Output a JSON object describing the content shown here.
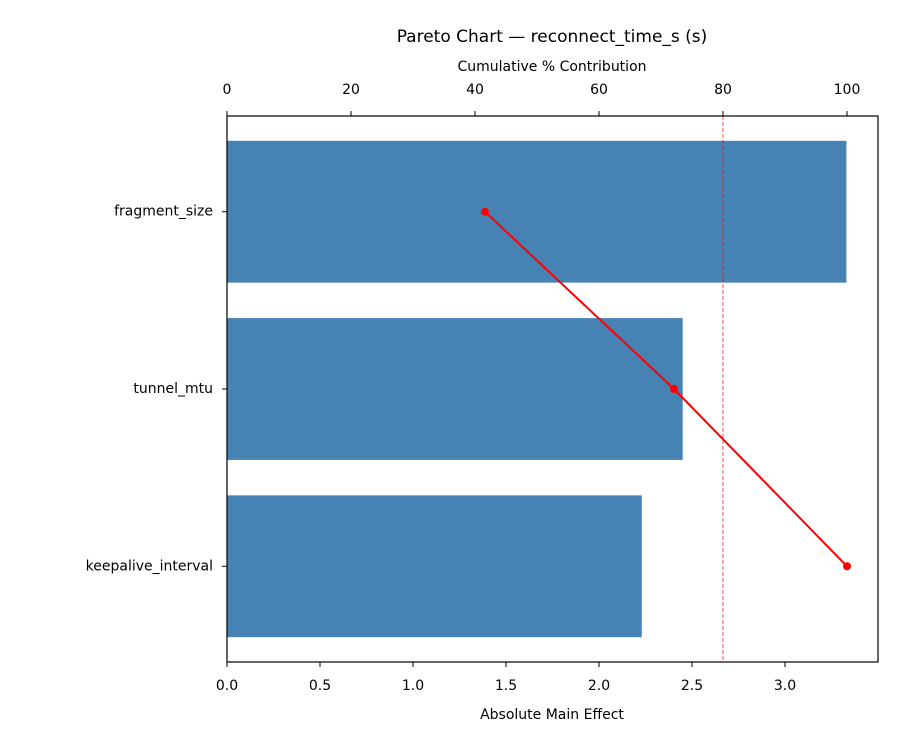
{
  "chart_data": {
    "type": "pareto",
    "title": "Pareto Chart — reconnect_time_s (s)",
    "xlabel": "Absolute Main Effect",
    "x2label": "Cumulative % Contribution",
    "categories": [
      "fragment_size",
      "tunnel_mtu",
      "keepalive_interval"
    ],
    "series": [
      {
        "name": "Absolute Main Effect",
        "color": "#4682b4",
        "values": [
          3.33,
          2.45,
          2.23
        ]
      },
      {
        "name": "Cumulative %",
        "color": "#ff0000",
        "axis": "x2",
        "values": [
          41.6,
          72.1,
          100
        ]
      }
    ],
    "threshold": 80,
    "xlim": [
      0,
      3.5
    ],
    "xticks": [
      {
        "value": 0,
        "label": "0.0"
      },
      {
        "value": 0.5,
        "label": "0.5"
      },
      {
        "value": 1,
        "label": "1.0"
      },
      {
        "value": 1.5,
        "label": "1.5"
      },
      {
        "value": 2,
        "label": "2.0"
      },
      {
        "value": 2.5,
        "label": "2.5"
      },
      {
        "value": 3,
        "label": "3.0"
      }
    ],
    "x2lim": [
      0,
      105
    ],
    "x2ticks": [
      0,
      20,
      40,
      60,
      80,
      100
    ]
  }
}
